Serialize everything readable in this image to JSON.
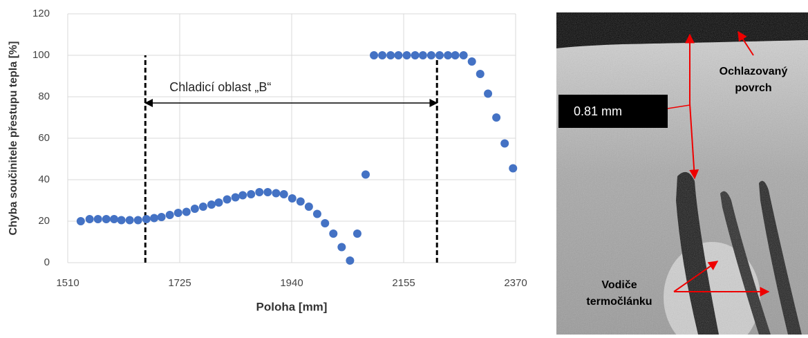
{
  "chart_data": {
    "type": "scatter",
    "xlabel": "Poloha [mm]",
    "ylabel": "Chyba součinitele přestupu tepla [%]",
    "x": [
      1535,
      1552,
      1568,
      1584,
      1599,
      1613,
      1629,
      1645,
      1661,
      1676,
      1690,
      1706,
      1722,
      1738,
      1754,
      1770,
      1786,
      1800,
      1816,
      1832,
      1846,
      1862,
      1878,
      1894,
      1910,
      1925,
      1941,
      1957,
      1973,
      1989,
      2004,
      2020,
      2036,
      2052,
      2066,
      2082,
      2098,
      2114,
      2130,
      2145,
      2161,
      2177,
      2192,
      2208,
      2224,
      2240,
      2254,
      2270,
      2286,
      2302,
      2317,
      2333,
      2349,
      2365
    ],
    "series": [
      {
        "name": "Chyba",
        "color": "#4472c4",
        "values": [
          20,
          21,
          21,
          21,
          21,
          20.5,
          20.5,
          20.5,
          21,
          21.5,
          22,
          23,
          24,
          24.5,
          26,
          27,
          28,
          29,
          30.5,
          31.5,
          32.5,
          33,
          34,
          34,
          33.5,
          33,
          31,
          29.5,
          27,
          23.5,
          19,
          14,
          7.5,
          1,
          14,
          42.5,
          100,
          100,
          100,
          100,
          100,
          100,
          100,
          100,
          100,
          100,
          100,
          100,
          97,
          91,
          81.5,
          70,
          57.5,
          45.5
        ]
      }
    ],
    "xlim": [
      1510,
      2370
    ],
    "xticks": [
      1510,
      1725,
      1940,
      2155,
      2370
    ],
    "ylim": [
      0,
      120
    ],
    "yticks": [
      0,
      20,
      40,
      60,
      80,
      100,
      120
    ],
    "grid": true,
    "region": {
      "label": "Chladicí oblast „B“",
      "x": [
        1659,
        2219
      ],
      "y": 77,
      "top": 100
    }
  },
  "image": {
    "surface_label": [
      "Ochlazovaný",
      "povrch"
    ],
    "measure_label": "0.81 mm",
    "wires_label": [
      "Vodiče",
      "termočlánku"
    ]
  }
}
